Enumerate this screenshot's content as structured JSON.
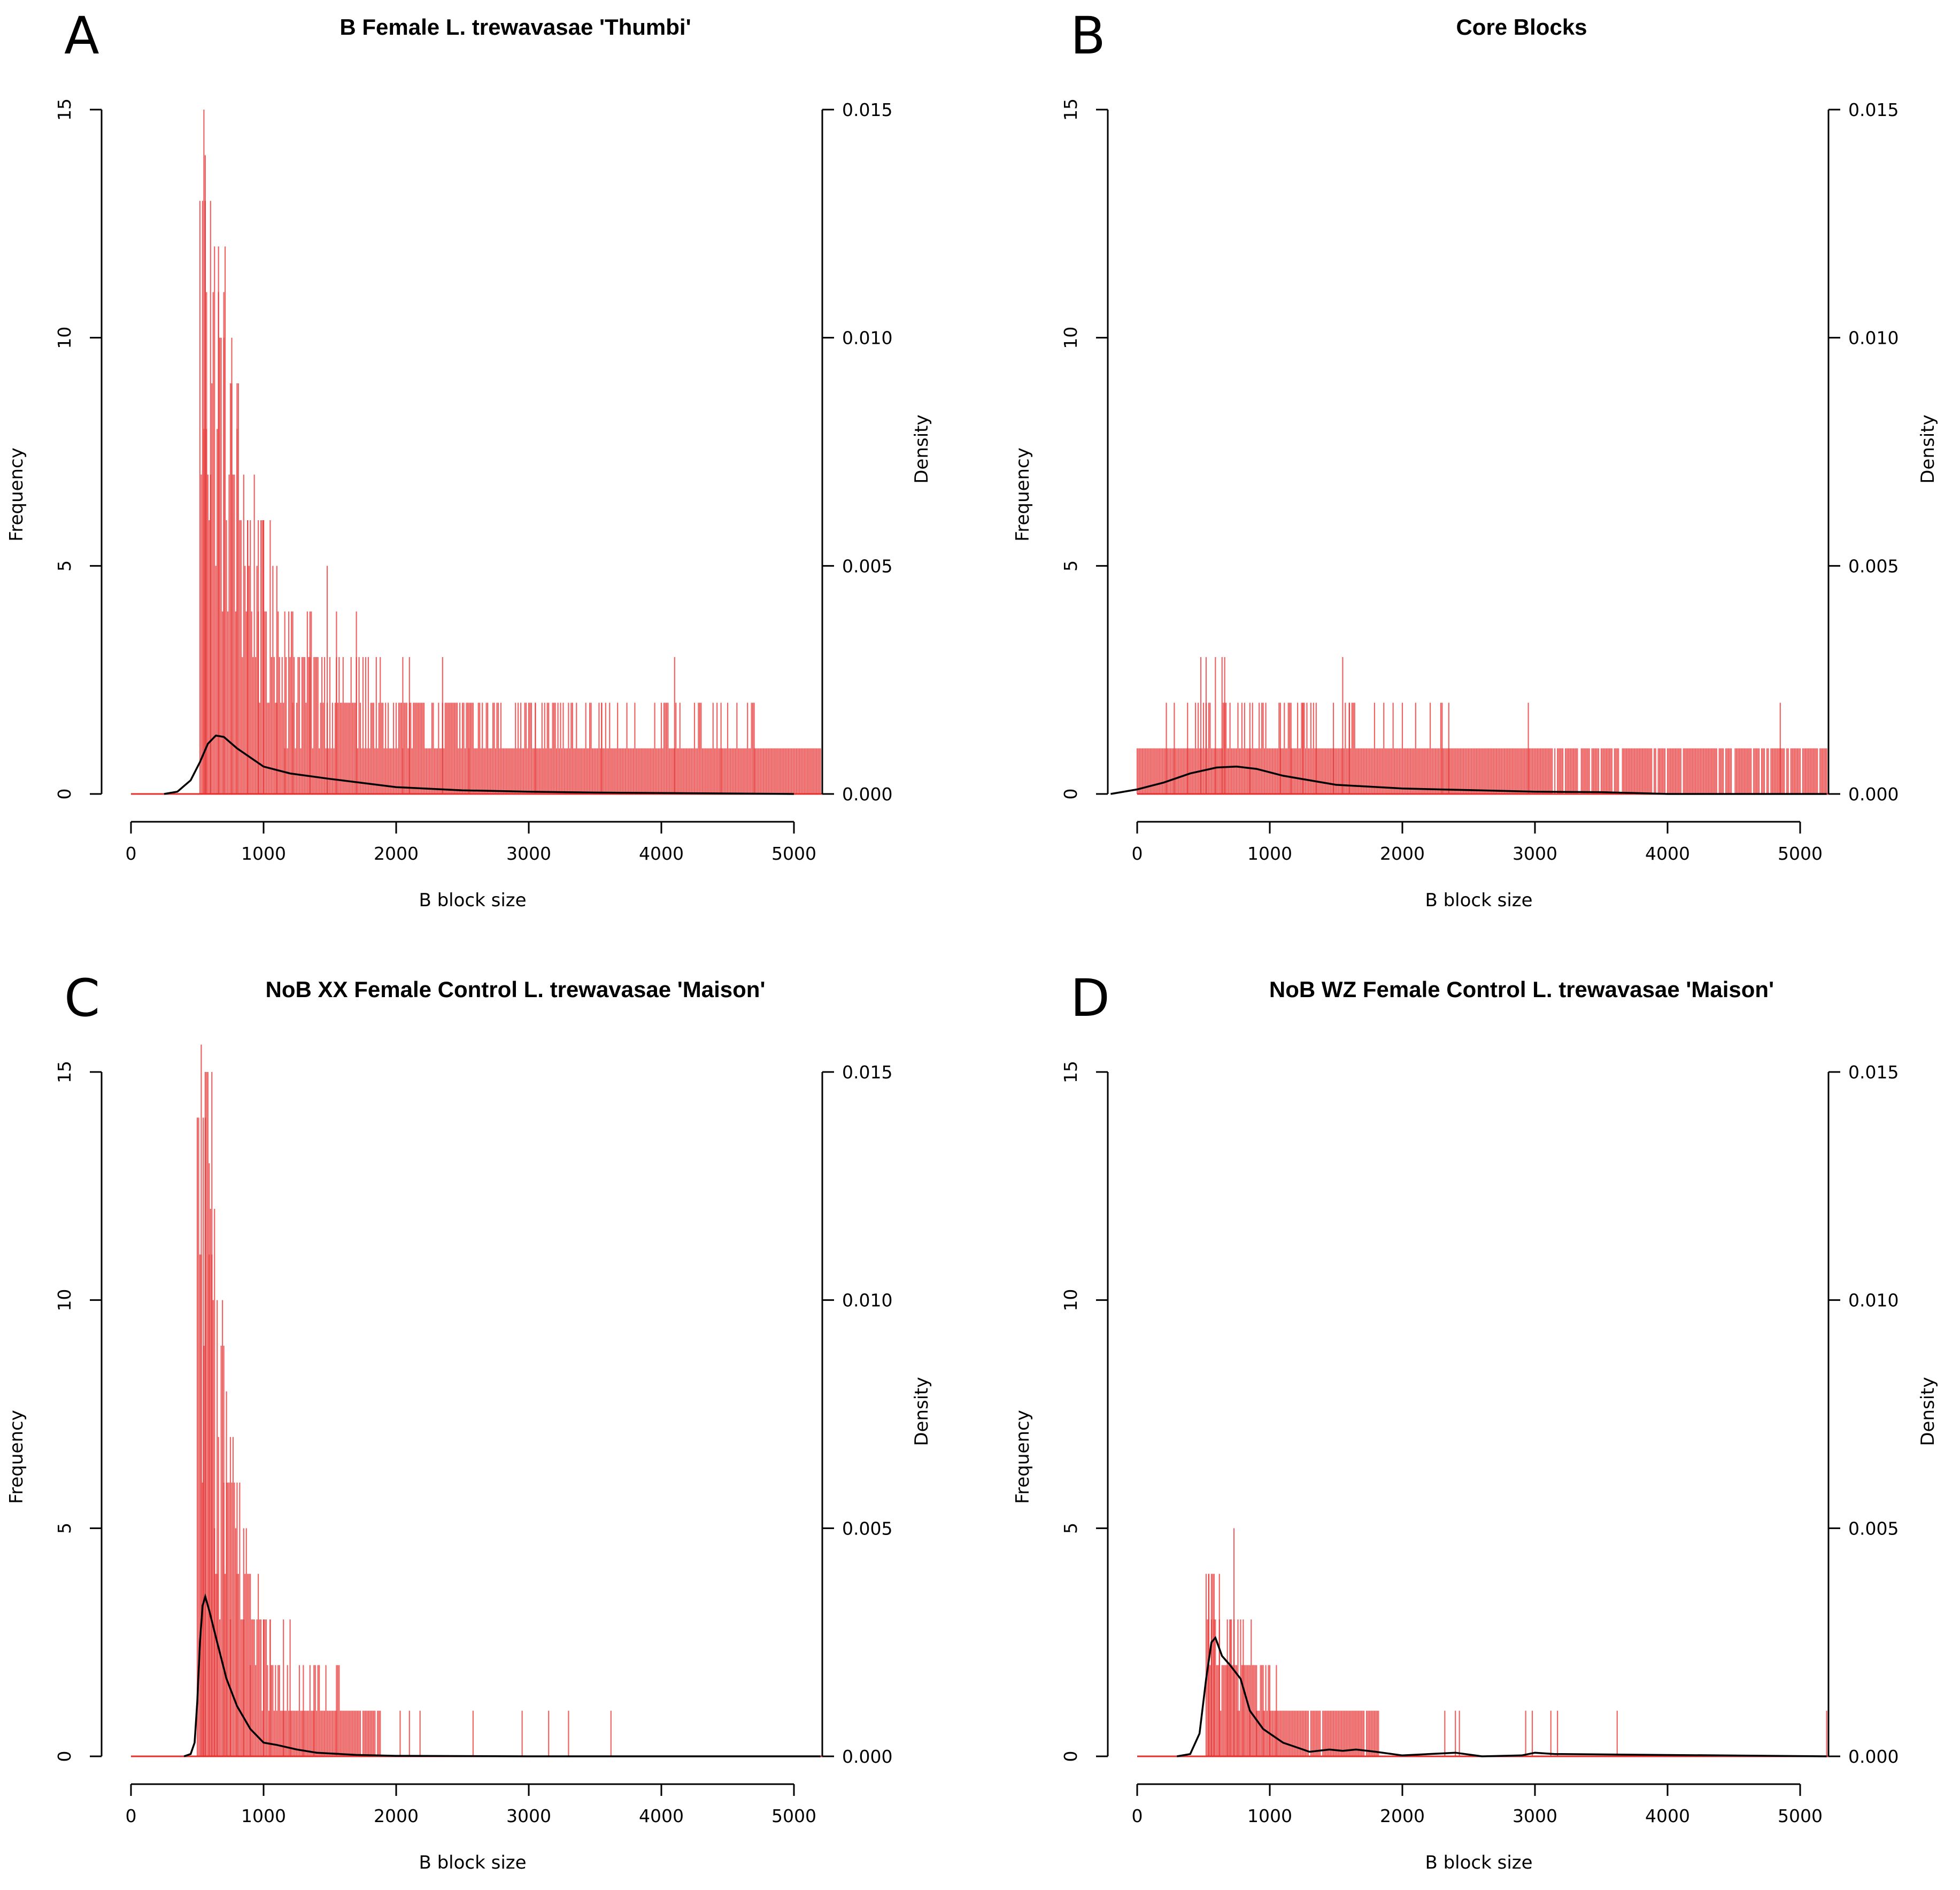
{
  "figure": {
    "panels": [
      {
        "letter": "A",
        "title": "B Female L. trewavasae 'Thumbi'",
        "chart_data": {
          "type": "histogram",
          "xlabel": "B block size",
          "ylabel": "Frequency",
          "y2label": "Density",
          "xlim": [
            0,
            5200
          ],
          "ylim": [
            0,
            15
          ],
          "y2lim": [
            0,
            0.015
          ],
          "xticks": [
            "0",
            "1000",
            "2000",
            "3000",
            "4000",
            "5000"
          ],
          "yticks": [
            "0",
            "5",
            "10",
            "15"
          ],
          "y2ticks": [
            "0.000",
            "0.005",
            "0.010",
            "0.015"
          ],
          "bin_width": 10,
          "min_size": 520,
          "hist_profile": [
            [
              520,
              13
            ],
            [
              600,
              12
            ],
            [
              700,
              10
            ],
            [
              800,
              8
            ],
            [
              900,
              6
            ],
            [
              1000,
              5
            ],
            [
              1100,
              4
            ],
            [
              1200,
              3.5
            ],
            [
              1400,
              3
            ],
            [
              1700,
              2.5
            ],
            [
              2000,
              2
            ],
            [
              3000,
              1.8
            ],
            [
              4000,
              1.4
            ],
            [
              5200,
              1.2
            ]
          ],
          "max_count": 15,
          "tall_bars": [
            [
              550,
              15
            ],
            [
              560,
              14
            ],
            [
              600,
              13
            ],
            [
              660,
              12
            ],
            [
              570,
              11
            ],
            [
              700,
              10
            ],
            [
              760,
              9
            ],
            [
              800,
              8
            ],
            [
              880,
              6
            ],
            [
              960,
              6
            ],
            [
              1000,
              6
            ],
            [
              1100,
              5
            ],
            [
              1160,
              4
            ],
            [
              1220,
              4
            ],
            [
              1350,
              4
            ],
            [
              1480,
              5
            ],
            [
              1550,
              4
            ],
            [
              1700,
              4
            ],
            [
              2050,
              3
            ],
            [
              2100,
              3
            ],
            [
              2350,
              3
            ],
            [
              2550,
              2
            ],
            [
              3050,
              2
            ],
            [
              3550,
              2
            ],
            [
              4100,
              3
            ],
            [
              4450,
              2
            ],
            [
              4700,
              2
            ]
          ],
          "density": [
            [
              250,
              0.0
            ],
            [
              350,
              5e-05
            ],
            [
              450,
              0.0003
            ],
            [
              520,
              0.0007
            ],
            [
              580,
              0.0011
            ],
            [
              640,
              0.00128
            ],
            [
              700,
              0.00125
            ],
            [
              800,
              0.001
            ],
            [
              1000,
              0.0006
            ],
            [
              1200,
              0.00045
            ],
            [
              1500,
              0.00033
            ],
            [
              2000,
              0.00015
            ],
            [
              2500,
              8e-05
            ],
            [
              3000,
              5e-05
            ],
            [
              3500,
              3e-05
            ],
            [
              4000,
              2e-05
            ],
            [
              5000,
              0.0
            ]
          ]
        }
      },
      {
        "letter": "B",
        "title": "Core Blocks",
        "chart_data": {
          "type": "histogram",
          "xlabel": "B block size",
          "ylabel": "Frequency",
          "y2label": "Density",
          "xlim": [
            0,
            5200
          ],
          "ylim": [
            0,
            15
          ],
          "y2lim": [
            0,
            0.015
          ],
          "xticks": [
            "0",
            "1000",
            "2000",
            "3000",
            "4000",
            "5000"
          ],
          "yticks": [
            "0",
            "5",
            "10",
            "15"
          ],
          "y2ticks": [
            "0.000",
            "0.005",
            "0.010",
            "0.015"
          ],
          "bin_width": 10,
          "min_size": 0,
          "hist_profile": [
            [
              0,
              0.9
            ],
            [
              400,
              1.0
            ],
            [
              500,
              1.8
            ],
            [
              800,
              1.6
            ],
            [
              1000,
              1.4
            ],
            [
              2000,
              1.3
            ],
            [
              3000,
              1.0
            ],
            [
              3500,
              0.7
            ],
            [
              4000,
              0.45
            ],
            [
              5200,
              0.35
            ]
          ],
          "max_count": 3,
          "tall_bars": [
            [
              480,
              3
            ],
            [
              520,
              3
            ],
            [
              590,
              3
            ],
            [
              640,
              3
            ],
            [
              660,
              3
            ],
            [
              1550,
              3
            ],
            [
              220,
              2
            ],
            [
              280,
              2
            ],
            [
              380,
              2
            ],
            [
              850,
              2
            ],
            [
              1080,
              2
            ],
            [
              1160,
              2
            ],
            [
              1250,
              2
            ],
            [
              1350,
              2
            ],
            [
              1480,
              2
            ],
            [
              1600,
              2
            ],
            [
              2300,
              2
            ],
            [
              2350,
              2
            ],
            [
              2950,
              2
            ],
            [
              4850,
              2
            ]
          ],
          "density": [
            [
              -200,
              0.0
            ],
            [
              0,
              0.0001
            ],
            [
              200,
              0.00025
            ],
            [
              400,
              0.00045
            ],
            [
              600,
              0.00058
            ],
            [
              750,
              0.0006
            ],
            [
              900,
              0.00055
            ],
            [
              1100,
              0.0004
            ],
            [
              1500,
              0.0002
            ],
            [
              2000,
              0.00012
            ],
            [
              3000,
              5e-05
            ],
            [
              3500,
              4e-05
            ],
            [
              4000,
              0.0
            ],
            [
              5200,
              0.0
            ]
          ]
        }
      },
      {
        "letter": "C",
        "title": "NoB XX Female Control L. trewavasae 'Maison'",
        "chart_data": {
          "type": "histogram",
          "xlabel": "B block size",
          "ylabel": "Frequency",
          "y2label": "Density",
          "xlim": [
            0,
            5200
          ],
          "ylim": [
            0,
            15
          ],
          "y2lim": [
            0,
            0.015
          ],
          "xticks": [
            "0",
            "1000",
            "2000",
            "3000",
            "4000",
            "5000"
          ],
          "yticks": [
            "0",
            "5",
            "10",
            "15"
          ],
          "y2ticks": [
            "0.000",
            "0.005",
            "0.010",
            "0.015"
          ],
          "bin_width": 10,
          "min_size": 500,
          "hist_profile": [
            [
              500,
              13
            ],
            [
              560,
              13
            ],
            [
              650,
              10
            ],
            [
              750,
              6
            ],
            [
              850,
              4
            ],
            [
              950,
              3
            ],
            [
              1050,
              2.5
            ],
            [
              1200,
              2
            ],
            [
              1400,
              1.5
            ],
            [
              1600,
              1.2
            ],
            [
              1800,
              0.8
            ],
            [
              1900,
              0.2
            ],
            [
              2000,
              0.1
            ],
            [
              3000,
              0.05
            ],
            [
              3700,
              0.0
            ],
            [
              5200,
              0.0
            ]
          ],
          "max_count": 16,
          "tall_bars": [
            [
              530,
              15.6
            ],
            [
              545,
              14
            ],
            [
              560,
              14
            ],
            [
              590,
              13
            ],
            [
              610,
              15
            ],
            [
              630,
              12
            ],
            [
              650,
              10
            ],
            [
              700,
              9
            ],
            [
              720,
              8
            ],
            [
              750,
              7
            ],
            [
              800,
              6
            ],
            [
              850,
              5
            ],
            [
              900,
              4
            ],
            [
              1000,
              3
            ],
            [
              1050,
              3
            ],
            [
              1150,
              3
            ],
            [
              1200,
              3
            ],
            [
              1300,
              2
            ],
            [
              1380,
              2
            ],
            [
              1550,
              2
            ],
            [
              2030,
              1
            ],
            [
              2100,
              1
            ],
            [
              2180,
              1
            ],
            [
              2580,
              1
            ],
            [
              2950,
              1
            ],
            [
              3150,
              1
            ],
            [
              3300,
              1
            ],
            [
              3620,
              1
            ]
          ],
          "density": [
            [
              400,
              0.0
            ],
            [
              450,
              5e-05
            ],
            [
              480,
              0.0003
            ],
            [
              500,
              0.0012
            ],
            [
              520,
              0.0025
            ],
            [
              540,
              0.0033
            ],
            [
              560,
              0.0035
            ],
            [
              590,
              0.0032
            ],
            [
              650,
              0.0025
            ],
            [
              720,
              0.0017
            ],
            [
              800,
              0.0011
            ],
            [
              900,
              0.0006
            ],
            [
              1000,
              0.0003
            ],
            [
              1100,
              0.00025
            ],
            [
              1250,
              0.00015
            ],
            [
              1400,
              8e-05
            ],
            [
              1700,
              3e-05
            ],
            [
              2000,
              1e-05
            ],
            [
              3000,
              0.0
            ],
            [
              5200,
              0.0
            ]
          ]
        }
      },
      {
        "letter": "D",
        "title": "NoB WZ Female Control L. trewavasae 'Maison'",
        "chart_data": {
          "type": "histogram",
          "xlabel": "B block size",
          "ylabel": "Frequency",
          "y2label": "Density",
          "xlim": [
            0,
            5200
          ],
          "ylim": [
            0,
            15
          ],
          "y2lim": [
            0,
            0.015
          ],
          "xticks": [
            "0",
            "1000",
            "2000",
            "3000",
            "4000",
            "5000"
          ],
          "yticks": [
            "0",
            "5",
            "10",
            "15"
          ],
          "y2ticks": [
            "0.000",
            "0.005",
            "0.010",
            "0.015"
          ],
          "bin_width": 10,
          "min_size": 520,
          "hist_profile": [
            [
              520,
              3.5
            ],
            [
              650,
              3
            ],
            [
              800,
              2.5
            ],
            [
              900,
              1.8
            ],
            [
              1000,
              1.3
            ],
            [
              1200,
              1.0
            ],
            [
              1400,
              0.8
            ],
            [
              1800,
              0.6
            ],
            [
              1850,
              0.0
            ],
            [
              5200,
              0.0
            ]
          ],
          "max_count": 5,
          "tall_bars": [
            [
              730,
              5
            ],
            [
              540,
              4
            ],
            [
              560,
              4
            ],
            [
              580,
              4
            ],
            [
              620,
              4
            ],
            [
              680,
              3
            ],
            [
              700,
              3
            ],
            [
              760,
              3
            ],
            [
              800,
              3
            ],
            [
              850,
              2
            ],
            [
              900,
              2
            ],
            [
              950,
              2
            ],
            [
              1000,
              2
            ],
            [
              1050,
              2
            ],
            [
              2320,
              1
            ],
            [
              2400,
              1
            ],
            [
              2430,
              1
            ],
            [
              2930,
              1
            ],
            [
              2980,
              1
            ],
            [
              3120,
              1
            ],
            [
              3170,
              1
            ],
            [
              3620,
              1
            ],
            [
              5200,
              1
            ]
          ],
          "density": [
            [
              300,
              0.0
            ],
            [
              400,
              5e-05
            ],
            [
              470,
              0.0005
            ],
            [
              520,
              0.0017
            ],
            [
              560,
              0.0025
            ],
            [
              590,
              0.0026
            ],
            [
              640,
              0.0022
            ],
            [
              700,
              0.002
            ],
            [
              780,
              0.0017
            ],
            [
              850,
              0.001
            ],
            [
              950,
              0.0006
            ],
            [
              1100,
              0.0003
            ],
            [
              1300,
              0.0001
            ],
            [
              1450,
              0.00015
            ],
            [
              1550,
              0.00012
            ],
            [
              1650,
              0.00015
            ],
            [
              1800,
              0.0001
            ],
            [
              2000,
              2e-05
            ],
            [
              2400,
              8e-05
            ],
            [
              2600,
              0.0
            ],
            [
              2900,
              2e-05
            ],
            [
              3000,
              8e-05
            ],
            [
              3150,
              5e-05
            ],
            [
              3600,
              4e-05
            ],
            [
              5200,
              0.0
            ]
          ]
        }
      }
    ]
  }
}
